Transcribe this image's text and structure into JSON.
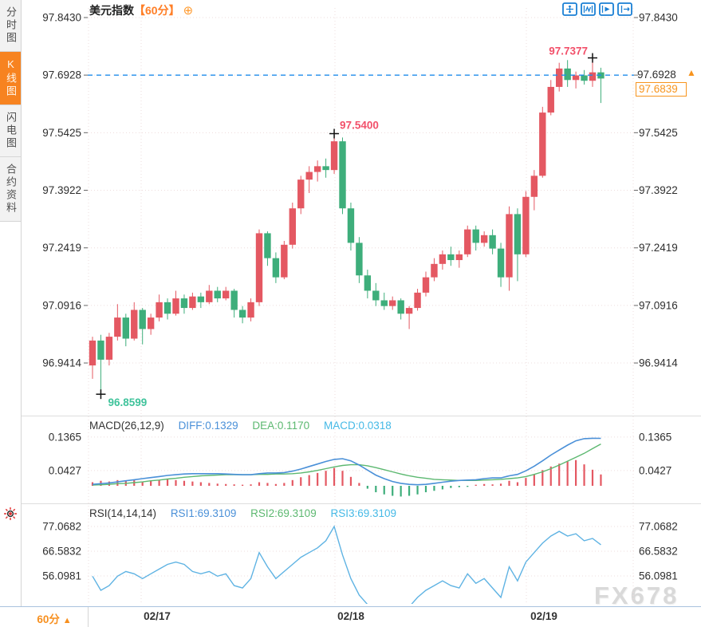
{
  "sidebar": {
    "items": [
      {
        "label": "分时图",
        "active": false
      },
      {
        "label": "K线图",
        "active": true
      },
      {
        "label": "闪电图",
        "active": false
      },
      {
        "label": "合约资料",
        "active": false
      }
    ]
  },
  "header": {
    "title": "美元指数",
    "period": "【60分】",
    "add_icon": "⊕"
  },
  "toolbar": {
    "icons": [
      "pan-crosshair",
      "zoom-range",
      "playback",
      "exit-chart"
    ]
  },
  "annotations": {
    "session_high": "97.7377",
    "peak": "97.5400",
    "low": "96.8599"
  },
  "price_labels": {
    "last_close": "97.6928",
    "current": "97.6839",
    "arrow": "▲"
  },
  "macd_legend": {
    "name": "MACD(26,12,9)",
    "diff": "DIFF:0.1329",
    "dea": "DEA:0.1170",
    "macd": "MACD:0.0318"
  },
  "rsi_legend": {
    "name": "RSI(14,14,14)",
    "rsi1": "RSI1:69.3109",
    "rsi2": "RSI2:69.3109",
    "rsi3": "RSI3:69.3109"
  },
  "bottom_bar": {
    "period": "60分",
    "arrow": "▲"
  },
  "watermark": "FX678",
  "colors": {
    "up": "#e45862",
    "down": "#3eae7b",
    "annotation_up": "#f2506a",
    "annotation_down": "#3fc39b",
    "accent_orange": "#f7941d",
    "dashed_line": "#1f8ceb",
    "diff_line": "#4a90d8",
    "dea_line": "#5cb870",
    "rsi_line": "#5fb3e3",
    "grid": "#eedcdc",
    "tick_text": "#2e2e2e",
    "icon_blue": "#1a7fd4",
    "cross": "#111111"
  },
  "chart_data": {
    "type": "candlestick+indicators",
    "symbol": "美元指数",
    "interval": "60分",
    "x_dates": [
      "02/17",
      "02/18",
      "02/19"
    ],
    "price_ticks": [
      97.843,
      97.6928,
      97.5425,
      97.3922,
      97.2419,
      97.0916,
      96.9414
    ],
    "last_close": 97.6928,
    "current_price": 97.6839,
    "session_high": 97.7377,
    "peak": 97.54,
    "low": 96.8599,
    "candles": [
      [
        96.935,
        97.01,
        96.9,
        97.0
      ],
      [
        97.0,
        97.015,
        96.86,
        96.95
      ],
      [
        96.95,
        97.02,
        96.935,
        97.01
      ],
      [
        97.01,
        97.095,
        97.0,
        97.06
      ],
      [
        97.06,
        97.07,
        96.985,
        97.005
      ],
      [
        97.005,
        97.1,
        97.0,
        97.08
      ],
      [
        97.08,
        97.085,
        96.99,
        97.03
      ],
      [
        97.03,
        97.07,
        97.015,
        97.06
      ],
      [
        97.06,
        97.12,
        97.05,
        97.1
      ],
      [
        97.1,
        97.11,
        97.055,
        97.07
      ],
      [
        97.07,
        97.13,
        97.065,
        97.11
      ],
      [
        97.11,
        97.12,
        97.07,
        97.085
      ],
      [
        97.085,
        97.125,
        97.08,
        97.115
      ],
      [
        97.115,
        97.125,
        97.085,
        97.1
      ],
      [
        97.1,
        97.145,
        97.095,
        97.13
      ],
      [
        97.13,
        97.14,
        97.1,
        97.11
      ],
      [
        97.11,
        97.14,
        97.105,
        97.13
      ],
      [
        97.13,
        97.135,
        97.06,
        97.08
      ],
      [
        97.08,
        97.09,
        97.045,
        97.06
      ],
      [
        97.06,
        97.11,
        97.05,
        97.1
      ],
      [
        97.1,
        97.29,
        97.09,
        97.28
      ],
      [
        97.28,
        97.285,
        97.195,
        97.215
      ],
      [
        97.215,
        97.23,
        97.15,
        97.165
      ],
      [
        97.165,
        97.26,
        97.16,
        97.25
      ],
      [
        97.25,
        97.36,
        97.24,
        97.345
      ],
      [
        97.345,
        97.43,
        97.33,
        97.42
      ],
      [
        97.42,
        97.455,
        97.385,
        97.44
      ],
      [
        97.44,
        97.47,
        97.415,
        97.455
      ],
      [
        97.455,
        97.475,
        97.425,
        97.445
      ],
      [
        97.445,
        97.54,
        97.435,
        97.52
      ],
      [
        97.52,
        97.53,
        97.33,
        97.345
      ],
      [
        97.345,
        97.36,
        97.235,
        97.255
      ],
      [
        97.255,
        97.27,
        97.15,
        97.17
      ],
      [
        97.17,
        97.185,
        97.11,
        97.13
      ],
      [
        97.13,
        97.15,
        97.09,
        97.105
      ],
      [
        97.105,
        97.125,
        97.08,
        97.09
      ],
      [
        97.09,
        97.115,
        97.08,
        97.105
      ],
      [
        97.105,
        97.11,
        97.055,
        97.07
      ],
      [
        97.07,
        97.09,
        97.03,
        97.085
      ],
      [
        97.085,
        97.135,
        97.078,
        97.125
      ],
      [
        97.125,
        97.18,
        97.115,
        97.165
      ],
      [
        97.165,
        97.215,
        97.155,
        97.2
      ],
      [
        97.2,
        97.235,
        97.185,
        97.225
      ],
      [
        97.225,
        97.245,
        97.195,
        97.21
      ],
      [
        97.21,
        97.235,
        97.19,
        97.225
      ],
      [
        97.225,
        97.3,
        97.218,
        97.29
      ],
      [
        97.29,
        97.3,
        97.235,
        97.255
      ],
      [
        97.255,
        97.285,
        97.245,
        97.275
      ],
      [
        97.275,
        97.29,
        97.225,
        97.24
      ],
      [
        97.24,
        97.255,
        97.14,
        97.165
      ],
      [
        97.165,
        97.35,
        97.13,
        97.33
      ],
      [
        97.33,
        97.345,
        97.155,
        97.225
      ],
      [
        97.225,
        97.39,
        97.218,
        97.375
      ],
      [
        97.375,
        97.445,
        97.34,
        97.43
      ],
      [
        97.43,
        97.61,
        97.425,
        97.595
      ],
      [
        97.595,
        97.68,
        97.588,
        97.662
      ],
      [
        97.662,
        97.725,
        97.65,
        97.71
      ],
      [
        97.71,
        97.732,
        97.662,
        97.68
      ],
      [
        97.68,
        97.702,
        97.658,
        97.692
      ],
      [
        97.692,
        97.706,
        97.668,
        97.678
      ],
      [
        97.678,
        97.7377,
        97.662,
        97.7
      ],
      [
        97.7,
        97.712,
        97.62,
        97.6839
      ]
    ],
    "macd": {
      "ticks": [
        0.1365,
        0.0427
      ],
      "diff_now": 0.1329,
      "dea_now": 0.117,
      "macd_now": 0.0318,
      "hist": [
        0.01,
        0.014,
        0.012,
        0.016,
        0.014,
        0.016,
        0.012,
        0.014,
        0.016,
        0.018,
        0.016,
        0.014,
        0.012,
        0.01,
        0.008,
        0.006,
        0.005,
        0.004,
        0.003,
        0.004,
        0.01,
        0.008,
        0.005,
        0.008,
        0.016,
        0.024,
        0.03,
        0.036,
        0.042,
        0.05,
        0.042,
        0.025,
        0.008,
        -0.008,
        -0.018,
        -0.024,
        -0.028,
        -0.03,
        -0.028,
        -0.024,
        -0.018,
        -0.014,
        -0.01,
        -0.006,
        -0.004,
        -0.003,
        0.003,
        0.005,
        0.004,
        0.006,
        0.014,
        0.01,
        0.022,
        0.032,
        0.044,
        0.054,
        0.062,
        0.068,
        0.072,
        0.06,
        0.045,
        0.0318
      ],
      "diff": [
        0.004,
        0.006,
        0.008,
        0.011,
        0.014,
        0.017,
        0.02,
        0.023,
        0.026,
        0.029,
        0.031,
        0.033,
        0.034,
        0.034,
        0.034,
        0.034,
        0.033,
        0.032,
        0.031,
        0.031,
        0.034,
        0.036,
        0.036,
        0.037,
        0.041,
        0.047,
        0.054,
        0.061,
        0.068,
        0.074,
        0.076,
        0.07,
        0.058,
        0.044,
        0.03,
        0.02,
        0.012,
        0.007,
        0.004,
        0.003,
        0.004,
        0.007,
        0.01,
        0.013,
        0.015,
        0.016,
        0.017,
        0.02,
        0.022,
        0.022,
        0.028,
        0.032,
        0.042,
        0.055,
        0.07,
        0.086,
        0.1,
        0.114,
        0.126,
        0.132,
        0.133,
        0.1329
      ],
      "dea": [
        0.002,
        0.003,
        0.004,
        0.006,
        0.007,
        0.009,
        0.011,
        0.014,
        0.016,
        0.019,
        0.021,
        0.024,
        0.026,
        0.028,
        0.029,
        0.03,
        0.031,
        0.031,
        0.031,
        0.031,
        0.032,
        0.032,
        0.033,
        0.033,
        0.034,
        0.036,
        0.039,
        0.043,
        0.048,
        0.053,
        0.057,
        0.059,
        0.059,
        0.056,
        0.051,
        0.045,
        0.039,
        0.033,
        0.028,
        0.024,
        0.021,
        0.018,
        0.017,
        0.016,
        0.015,
        0.015,
        0.015,
        0.016,
        0.017,
        0.018,
        0.02,
        0.022,
        0.026,
        0.032,
        0.039,
        0.048,
        0.058,
        0.069,
        0.08,
        0.091,
        0.104,
        0.117
      ]
    },
    "rsi": {
      "ticks": [
        77.0682,
        66.5832,
        56.0981
      ],
      "now": 69.3109,
      "values": [
        56,
        50,
        52,
        56,
        58,
        57,
        55,
        57,
        59,
        61,
        62,
        61,
        58,
        57,
        58,
        56,
        57,
        52,
        51,
        55,
        66,
        60,
        55,
        58,
        61,
        64,
        66,
        68,
        71,
        77.07,
        65,
        55,
        48,
        44,
        42,
        41,
        42,
        40,
        43,
        47,
        50,
        52,
        54,
        52,
        51,
        57,
        53,
        55,
        51,
        47,
        60,
        54,
        62,
        66,
        70,
        73,
        75,
        73,
        74,
        71,
        72,
        69.31
      ]
    }
  }
}
